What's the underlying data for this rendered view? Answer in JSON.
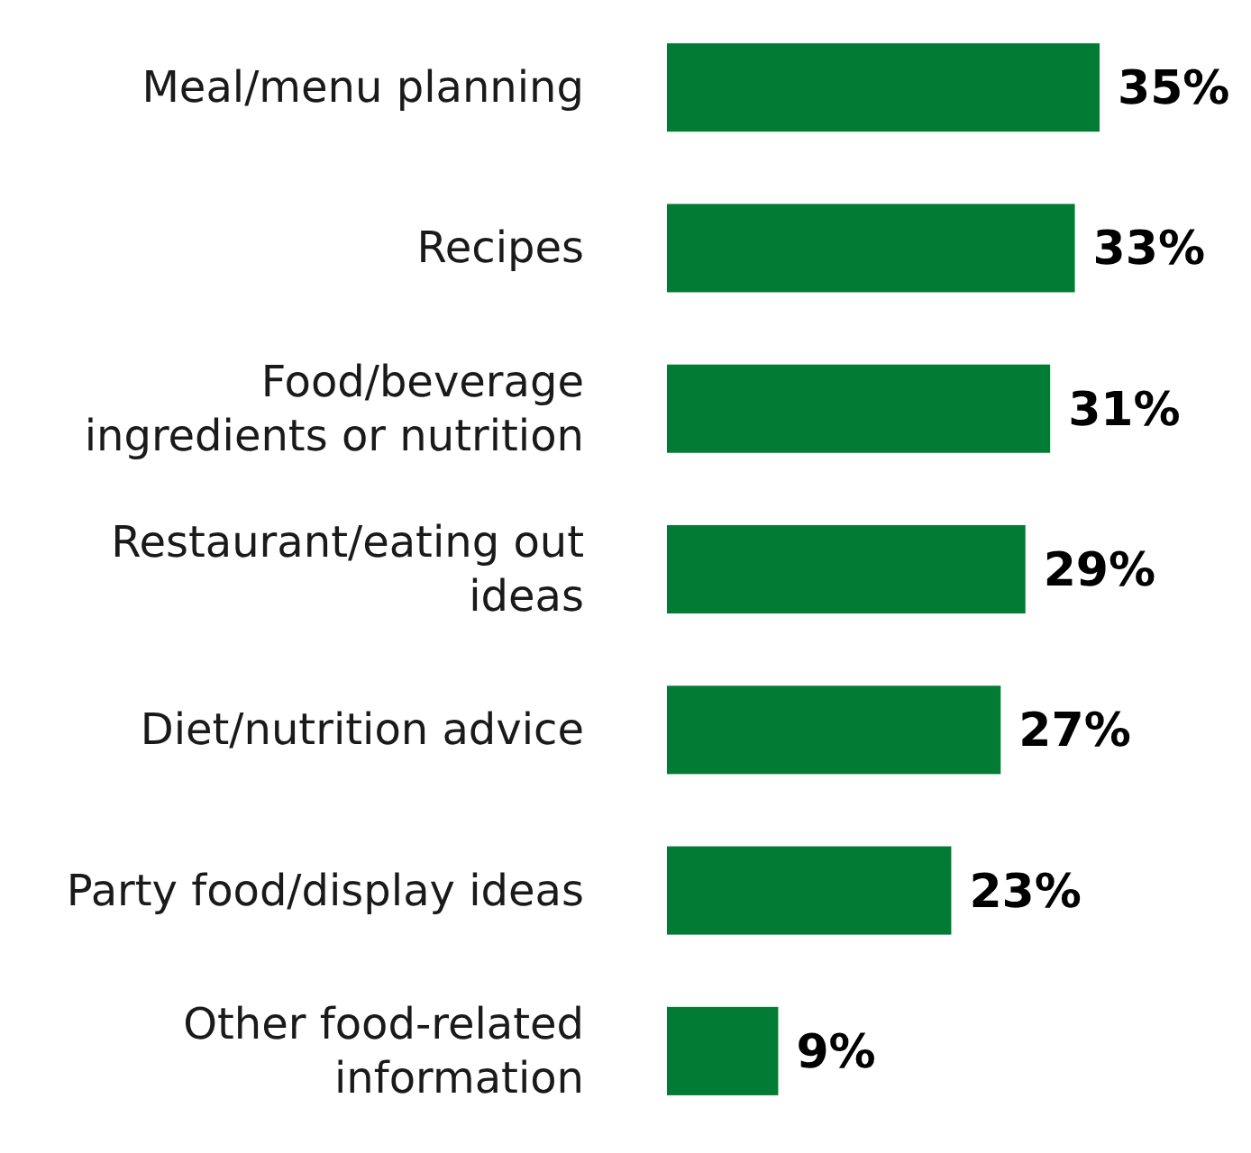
{
  "chart_data": {
    "type": "bar",
    "orientation": "horizontal",
    "categories": [
      "Meal/menu planning",
      "Recipes",
      "Food/beverage ingredients or nutrition",
      "Restaurant/eating out ideas",
      "Diet/nutrition advice",
      "Party food/display ideas",
      "Other food-related information"
    ],
    "values": [
      35,
      33,
      31,
      29,
      27,
      23,
      9
    ],
    "value_labels": [
      "35%",
      "33%",
      "31%",
      "29%",
      "27%",
      "23%",
      "9%"
    ],
    "color": "#027b34"
  }
}
